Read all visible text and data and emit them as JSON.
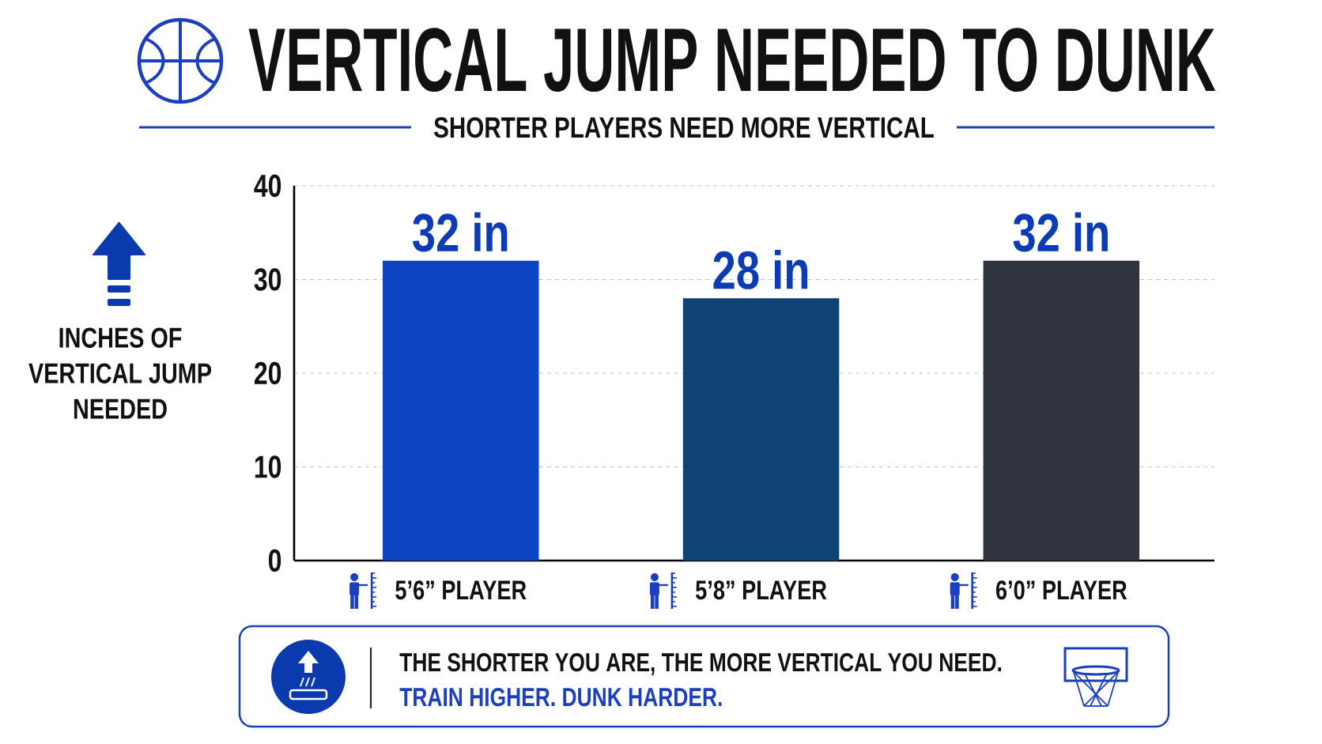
{
  "chart_data": {
    "type": "bar",
    "title": "VERTICAL JUMP NEEDED TO DUNK",
    "subtitle": "SHORTER PLAYERS NEED MORE VERTICAL",
    "ylabel": "INCHES OF VERTICAL JUMP NEEDED",
    "categories": [
      "5’6” PLAYER",
      "5’8” PLAYER",
      "6’0” PLAYER"
    ],
    "values": [
      32,
      28,
      32
    ],
    "colors": [
      "#0b44c0",
      "#0f4275",
      "#30353d"
    ],
    "value_labels": [
      "32 in",
      "28 in",
      "32 in"
    ],
    "ylim": [
      0,
      40
    ],
    "yticks": [
      0,
      10,
      20,
      30,
      40
    ],
    "grid": "y",
    "annotations": [
      "THE SHORTER YOU ARE, THE MORE VERTICAL YOU NEED.",
      "TRAIN HIGHER. DUNK HARDER."
    ]
  }
}
